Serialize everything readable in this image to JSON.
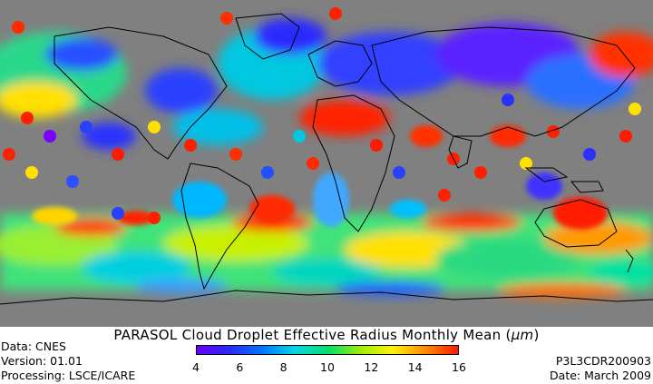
{
  "title_prefix": "PARASOL Cloud Droplet Effective Radius Monthly Mean (",
  "title_unit": "μm",
  "title_suffix": ")",
  "meta_left": {
    "data": "Data: CNES",
    "version": "Version: 01.01",
    "processing": "Processing: LSCE/ICARE"
  },
  "meta_right": {
    "product": "P3L3CDR200903",
    "date": "Date: March 2009"
  },
  "colorbar": {
    "min": 4,
    "max": 16,
    "ticks": [
      "4",
      "6",
      "8",
      "10",
      "12",
      "14",
      "16"
    ],
    "colors": [
      "#6a00ff",
      "#2a28ff",
      "#0077ff",
      "#00d6e6",
      "#00e070",
      "#9aef00",
      "#fff200",
      "#ff8a00",
      "#ff1a00"
    ]
  },
  "map": {
    "no_data_color": "#808080",
    "coastline_color": "#000000"
  }
}
